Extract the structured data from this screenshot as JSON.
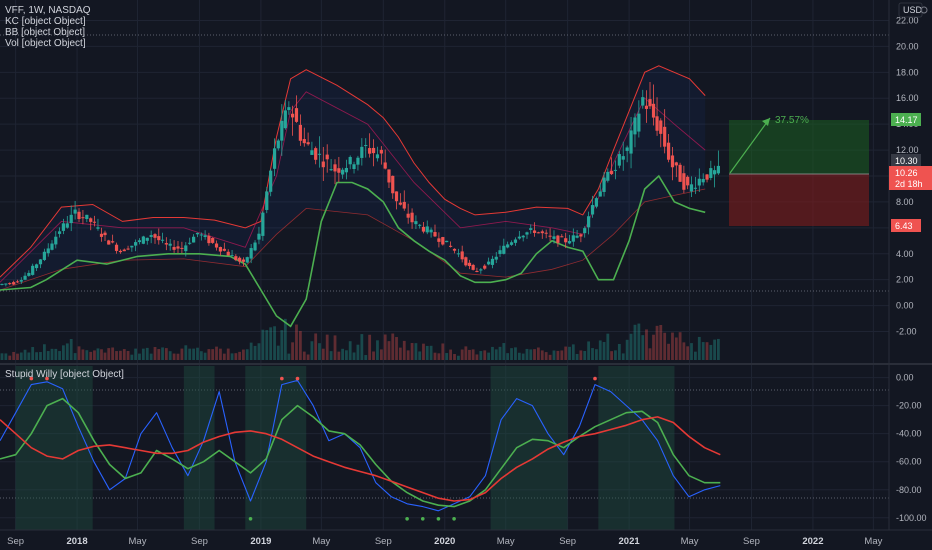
{
  "legend": {
    "symbol_line": "VFF, 1W, NASDAQ",
    "kc_line": "KC [object Object]",
    "bb_line": "BB [object Object]",
    "vol_line": "Vol [object Object]",
    "osc_line": "Stupid Willy [object Object]"
  },
  "currency_label": "USD",
  "colors": {
    "background": "#131722",
    "grid": "#1f2433",
    "axis_text": "#b2b5be",
    "candle_up": "#26a69a",
    "candle_down": "#ef5350",
    "kc_band": "#e53935",
    "bb_band": "#4caf50",
    "bb_basis": "#c2185b",
    "osc_fast": "#2962ff",
    "osc_signal": "#4caf50",
    "osc_slow": "#e53935",
    "target_zone": "#1b5e20",
    "stop_zone": "#7f1d1d",
    "shade_zone": "#1e4d40"
  },
  "markers": {
    "target_price": "14.17",
    "last_price": "10.30",
    "entry_price": "10.26",
    "entry_countdown": "2d 18h",
    "stop_price": "6.43",
    "target_percent": "37.57%"
  },
  "chart_data": [
    {
      "type": "candlestick",
      "name": "VFF, 1W, NASDAQ",
      "y_ticks": [
        "22.00",
        "20.00",
        "18.00",
        "16.00",
        "14.00",
        "12.00",
        "10.00",
        "8.00",
        "6.00",
        "4.00",
        "2.00",
        "0.00",
        "-2.00"
      ],
      "ylim": [
        -2.5,
        22.5
      ],
      "x_ticks": [
        "Sep",
        "2018",
        "May",
        "Sep",
        "2019",
        "May",
        "Sep",
        "2020",
        "May",
        "Sep",
        "2021",
        "May",
        "Sep",
        "2022",
        "May"
      ],
      "xlim": [
        "2017-08-01",
        "2022-06-01"
      ],
      "close_series": [
        [
          "2017-08-01",
          1.6
        ],
        [
          "2017-09-01",
          1.8
        ],
        [
          "2017-10-01",
          2.5
        ],
        [
          "2017-11-01",
          4.0
        ],
        [
          "2017-12-01",
          5.8
        ],
        [
          "2018-01-01",
          7.2
        ],
        [
          "2018-02-01",
          6.5
        ],
        [
          "2018-03-01",
          5.2
        ],
        [
          "2018-04-01",
          4.2
        ],
        [
          "2018-05-01",
          4.8
        ],
        [
          "2018-06-01",
          5.5
        ],
        [
          "2018-07-01",
          4.6
        ],
        [
          "2018-08-01",
          4.4
        ],
        [
          "2018-09-01",
          5.6
        ],
        [
          "2018-10-01",
          4.8
        ],
        [
          "2018-11-01",
          4.0
        ],
        [
          "2018-12-01",
          3.2
        ],
        [
          "2019-01-01",
          5.5
        ],
        [
          "2019-02-01",
          12.0
        ],
        [
          "2019-03-01",
          15.5
        ],
        [
          "2019-04-01",
          12.5
        ],
        [
          "2019-05-01",
          11.5
        ],
        [
          "2019-06-01",
          10.5
        ],
        [
          "2019-07-01",
          11.0
        ],
        [
          "2019-08-01",
          12.2
        ],
        [
          "2019-09-01",
          11.5
        ],
        [
          "2019-10-01",
          8.0
        ],
        [
          "2019-11-01",
          6.5
        ],
        [
          "2019-12-01",
          5.8
        ],
        [
          "2020-01-01",
          5.0
        ],
        [
          "2020-02-01",
          4.0
        ],
        [
          "2020-03-01",
          2.6
        ],
        [
          "2020-04-01",
          3.2
        ],
        [
          "2020-05-01",
          4.5
        ],
        [
          "2020-06-01",
          5.5
        ],
        [
          "2020-07-01",
          5.8
        ],
        [
          "2020-08-01",
          5.2
        ],
        [
          "2020-09-01",
          5.0
        ],
        [
          "2020-10-01",
          5.5
        ],
        [
          "2020-11-01",
          8.5
        ],
        [
          "2020-12-01",
          10.5
        ],
        [
          "2021-01-01",
          12.0
        ],
        [
          "2021-02-01",
          16.0
        ],
        [
          "2021-03-01",
          14.0
        ],
        [
          "2021-04-01",
          10.8
        ],
        [
          "2021-05-01",
          9.0
        ],
        [
          "2021-06-01",
          10.0
        ],
        [
          "2021-07-01",
          10.3
        ]
      ],
      "kc_upper": [
        [
          0,
          2.2
        ],
        [
          2,
          4.5
        ],
        [
          4,
          7.6
        ],
        [
          6,
          7.8
        ],
        [
          8,
          6.5
        ],
        [
          10,
          6.8
        ],
        [
          12,
          6.8
        ],
        [
          14,
          6.6
        ],
        [
          16,
          6.0
        ],
        [
          17,
          6.5
        ],
        [
          18,
          13.0
        ],
        [
          19,
          17.5
        ],
        [
          20,
          18.2
        ],
        [
          22,
          17.0
        ],
        [
          24,
          15.5
        ],
        [
          25,
          14.5
        ],
        [
          26,
          13.0
        ],
        [
          27,
          11.0
        ],
        [
          28,
          9.5
        ],
        [
          29,
          8.2
        ],
        [
          30,
          7.5
        ],
        [
          31,
          7.0
        ],
        [
          33,
          7.2
        ],
        [
          35,
          7.6
        ],
        [
          37,
          7.5
        ],
        [
          38,
          7.0
        ],
        [
          39,
          9.0
        ],
        [
          40,
          12.0
        ],
        [
          41,
          15.0
        ],
        [
          42,
          18.0
        ],
        [
          43,
          18.5
        ],
        [
          45,
          17.5
        ],
        [
          46,
          16.2
        ]
      ],
      "kc_lower": [
        [
          0,
          1.2
        ],
        [
          4,
          2.8
        ],
        [
          8,
          3.5
        ],
        [
          12,
          3.6
        ],
        [
          16,
          3.0
        ],
        [
          18,
          5.5
        ],
        [
          20,
          7.5
        ],
        [
          24,
          7.0
        ],
        [
          27,
          5.0
        ],
        [
          30,
          2.5
        ],
        [
          33,
          2.2
        ],
        [
          36,
          2.8
        ],
        [
          38,
          3.5
        ],
        [
          40,
          5.5
        ],
        [
          42,
          8.0
        ],
        [
          44,
          8.5
        ],
        [
          46,
          9.0
        ]
      ],
      "bb_upper": [
        [
          0,
          1.8
        ],
        [
          4,
          6.5
        ],
        [
          8,
          6.0
        ],
        [
          12,
          6.0
        ],
        [
          16,
          4.5
        ],
        [
          18,
          10.0
        ],
        [
          19,
          15.0
        ],
        [
          20,
          16.5
        ],
        [
          24,
          14.0
        ],
        [
          27,
          9.5
        ],
        [
          30,
          6.0
        ],
        [
          33,
          6.5
        ],
        [
          36,
          6.0
        ],
        [
          38,
          5.5
        ],
        [
          40,
          11.0
        ],
        [
          42,
          16.0
        ],
        [
          44,
          14.0
        ],
        [
          46,
          12.0
        ]
      ],
      "bb_lower": [
        [
          0,
          1.2
        ],
        [
          2,
          1.4
        ],
        [
          3,
          2.0
        ],
        [
          5,
          3.5
        ],
        [
          7,
          3.2
        ],
        [
          9,
          3.8
        ],
        [
          11,
          4.0
        ],
        [
          13,
          4.0
        ],
        [
          15,
          3.8
        ],
        [
          16,
          3.2
        ],
        [
          17,
          1.2
        ],
        [
          18,
          -0.8
        ],
        [
          19,
          -1.6
        ],
        [
          20,
          0.5
        ],
        [
          21,
          6.5
        ],
        [
          22,
          9.5
        ],
        [
          23,
          9.5
        ],
        [
          24,
          9.0
        ],
        [
          25,
          8.0
        ],
        [
          26,
          6.0
        ],
        [
          27,
          5.0
        ],
        [
          28,
          4.2
        ],
        [
          29,
          3.5
        ],
        [
          30,
          2.3
        ],
        [
          31,
          1.8
        ],
        [
          32,
          1.8
        ],
        [
          33,
          2.0
        ],
        [
          34,
          2.5
        ],
        [
          35,
          4.0
        ],
        [
          36,
          5.0
        ],
        [
          37,
          4.5
        ],
        [
          38,
          4.2
        ],
        [
          39,
          2.0
        ],
        [
          40,
          2.0
        ],
        [
          41,
          5.0
        ],
        [
          42,
          9.0
        ],
        [
          43,
          10.0
        ],
        [
          44,
          8.0
        ],
        [
          45,
          7.5
        ],
        [
          46,
          7.2
        ]
      ]
    },
    {
      "type": "line",
      "name": "Stupid Willy [object Object]",
      "y_ticks": [
        "0.00",
        "-20.00",
        "-40.00",
        "-60.00",
        "-80.00",
        "-100.00"
      ],
      "ylim": [
        -103,
        4
      ],
      "series": [
        {
          "name": "",
          "values": [
            -45,
            -25,
            -5,
            -3,
            -8,
            -35,
            -60,
            -80,
            -72,
            -40,
            -25,
            -50,
            -70,
            -45,
            -10,
            -60,
            -88,
            -60,
            -5,
            -2,
            -20,
            -45,
            -40,
            -50,
            -75,
            -85,
            -90,
            -92,
            -95,
            -90,
            -85,
            -70,
            -30,
            -15,
            -20,
            -40,
            -55,
            -35,
            -5,
            -10,
            -20,
            -30,
            -45,
            -70,
            -85,
            -80,
            -77
          ]
        },
        {
          "name": "",
          "values": [
            -58,
            -55,
            -40,
            -20,
            -15,
            -25,
            -45,
            -62,
            -72,
            -68,
            -52,
            -58,
            -65,
            -60,
            -52,
            -60,
            -68,
            -58,
            -30,
            -20,
            -28,
            -38,
            -40,
            -48,
            -62,
            -74,
            -82,
            -88,
            -91,
            -92,
            -88,
            -80,
            -65,
            -50,
            -44,
            -45,
            -50,
            -42,
            -35,
            -30,
            -25,
            -24,
            -32,
            -55,
            -70,
            -75,
            -75
          ]
        },
        {
          "name": "",
          "values": [
            -30,
            -40,
            -50,
            -56,
            -58,
            -52,
            -49,
            -48,
            -50,
            -52,
            -54,
            -54,
            -52,
            -46,
            -42,
            -39,
            -38,
            -40,
            -44,
            -50,
            -56,
            -60,
            -64,
            -67,
            -70,
            -74,
            -78,
            -82,
            -86,
            -88,
            -87,
            -82,
            -72,
            -64,
            -58,
            -51,
            -46,
            -42,
            -40,
            -37,
            -34,
            -30,
            -28,
            -32,
            -42,
            -50,
            -55
          ]
        }
      ],
      "shaded_bands": [
        [
          "2017-09-01",
          "2018-02-01"
        ],
        [
          "2018-08-01",
          "2018-10-01"
        ],
        [
          "2018-12-01",
          "2019-04-01"
        ],
        [
          "2020-04-01",
          "2020-09-01"
        ],
        [
          "2020-11-01",
          "2021-04-01"
        ]
      ]
    }
  ]
}
